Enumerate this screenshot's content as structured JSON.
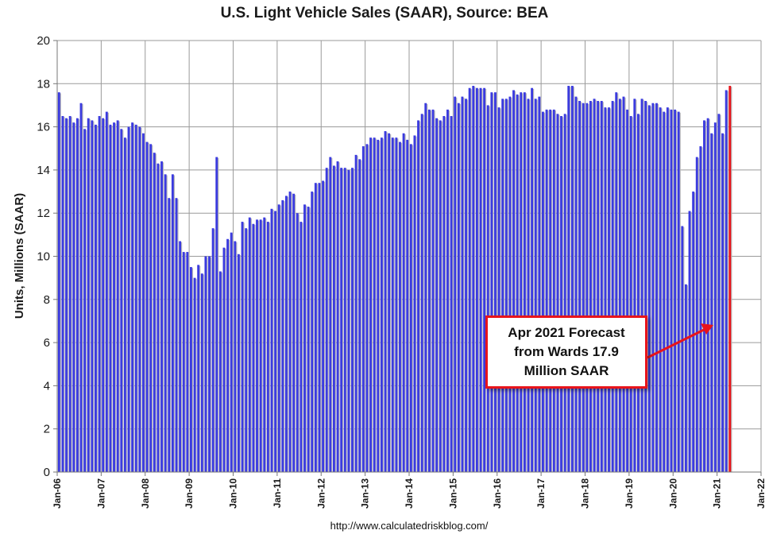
{
  "chart_data": {
    "type": "bar",
    "title": "U.S. Light Vehicle Sales (SAAR), Source: BEA",
    "ylabel": "Units, Millions (SAAR)",
    "xlabel": "",
    "ylim": [
      0,
      20
    ],
    "yticks": [
      0,
      2,
      4,
      6,
      8,
      10,
      12,
      14,
      16,
      18,
      20
    ],
    "xticks": [
      "Jan-06",
      "Jan-07",
      "Jan-08",
      "Jan-09",
      "Jan-10",
      "Jan-11",
      "Jan-12",
      "Jan-13",
      "Jan-14",
      "Jan-15",
      "Jan-16",
      "Jan-17",
      "Jan-18",
      "Jan-19",
      "Jan-20",
      "Jan-21",
      "Jan-22"
    ],
    "grid": true,
    "start_month": "Jan-06",
    "series": [
      {
        "name": "Light vehicle sales (SAAR)",
        "color": "#3b3bdf",
        "values": [
          17.6,
          16.5,
          16.4,
          16.5,
          16.2,
          16.4,
          17.1,
          15.9,
          16.4,
          16.3,
          16.1,
          16.5,
          16.4,
          16.7,
          16.1,
          16.2,
          16.3,
          15.9,
          15.5,
          16.0,
          16.2,
          16.1,
          16.0,
          15.7,
          15.3,
          15.2,
          14.8,
          14.3,
          14.4,
          13.8,
          12.7,
          13.8,
          12.7,
          10.7,
          10.2,
          10.2,
          9.5,
          9.0,
          9.6,
          9.2,
          10.0,
          10.0,
          11.3,
          14.6,
          9.3,
          10.4,
          10.8,
          11.1,
          10.7,
          10.1,
          11.6,
          11.3,
          11.8,
          11.5,
          11.7,
          11.7,
          11.8,
          11.6,
          12.2,
          12.1,
          12.4,
          12.6,
          12.8,
          13.0,
          12.9,
          12.0,
          11.6,
          12.4,
          12.3,
          13.0,
          13.4,
          13.4,
          13.5,
          14.1,
          14.6,
          14.2,
          14.4,
          14.1,
          14.1,
          14.0,
          14.1,
          14.7,
          14.5,
          15.1,
          15.2,
          15.5,
          15.5,
          15.4,
          15.5,
          15.8,
          15.7,
          15.5,
          15.5,
          15.3,
          15.7,
          15.4,
          15.2,
          15.6,
          16.3,
          16.6,
          17.1,
          16.8,
          16.8,
          16.4,
          16.3,
          16.5,
          16.8,
          16.5,
          17.4,
          17.1,
          17.4,
          17.3,
          17.8,
          17.9,
          17.8,
          17.8,
          17.8,
          17.0,
          17.6,
          17.6,
          16.9,
          17.3,
          17.3,
          17.4,
          17.7,
          17.5,
          17.6,
          17.6,
          17.3,
          17.8,
          17.3,
          17.4,
          16.7,
          16.8,
          16.8,
          16.8,
          16.6,
          16.5,
          16.6,
          17.9,
          17.9,
          17.4,
          17.2,
          17.1,
          17.1,
          17.2,
          17.3,
          17.2,
          17.2,
          16.9,
          16.9,
          17.2,
          17.6,
          17.3,
          17.4,
          16.8,
          16.5,
          17.3,
          16.6,
          17.3,
          17.2,
          17.0,
          17.1,
          17.1,
          16.9,
          16.7,
          16.9,
          16.8,
          16.8,
          16.7,
          11.4,
          8.7,
          12.1,
          13.0,
          14.6,
          15.1,
          16.3,
          16.4,
          15.7,
          16.2,
          16.6,
          15.7,
          17.7
        ],
        "forecast": {
          "label": "Apr-21",
          "value": 17.9,
          "color": "#e8141b"
        }
      }
    ],
    "annotation": {
      "text": "Apr 2021 Forecast\nfrom Wards 17.9\nMillion SAAR",
      "border_color": "#e8141b",
      "arrow_color": "#e8141b"
    },
    "source_url": "http://www.calculatedriskblog.com/"
  }
}
